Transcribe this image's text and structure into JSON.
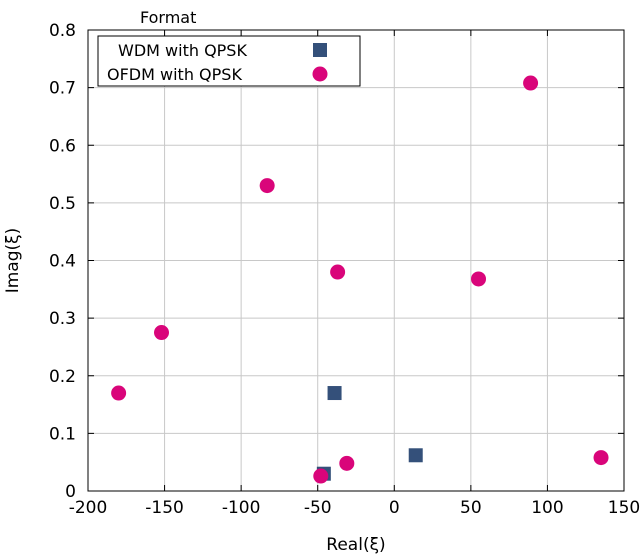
{
  "chart_data": {
    "type": "scatter",
    "title": "",
    "xlabel": "Real(ξ)",
    "ylabel": "Imag(ξ)",
    "xlim": [
      -200,
      150
    ],
    "ylim": [
      0,
      0.8
    ],
    "xticks": [
      "-200",
      "-150",
      "-100",
      "-50",
      "0",
      "50",
      "100",
      "150"
    ],
    "yticks": [
      "0",
      "0.1",
      "0.2",
      "0.3",
      "0.4",
      "0.5",
      "0.6",
      "0.7",
      "0.8"
    ],
    "grid": true,
    "legend": {
      "title": "Format",
      "placement": "top-left"
    },
    "series": [
      {
        "name": "WDM with QPSK",
        "marker": "square",
        "color": "#34507a",
        "points": [
          {
            "x": -46,
            "y": 0.03
          },
          {
            "x": -39,
            "y": 0.17
          },
          {
            "x": 14,
            "y": 0.062
          }
        ]
      },
      {
        "name": "OFDM with QPSK",
        "marker": "circle",
        "color": "#d9057a",
        "points": [
          {
            "x": -180,
            "y": 0.17
          },
          {
            "x": -152,
            "y": 0.275
          },
          {
            "x": -83,
            "y": 0.53
          },
          {
            "x": -37,
            "y": 0.38
          },
          {
            "x": -48,
            "y": 0.026
          },
          {
            "x": -31,
            "y": 0.048
          },
          {
            "x": 55,
            "y": 0.368
          },
          {
            "x": 89,
            "y": 0.708
          },
          {
            "x": 135,
            "y": 0.058
          }
        ]
      }
    ]
  }
}
